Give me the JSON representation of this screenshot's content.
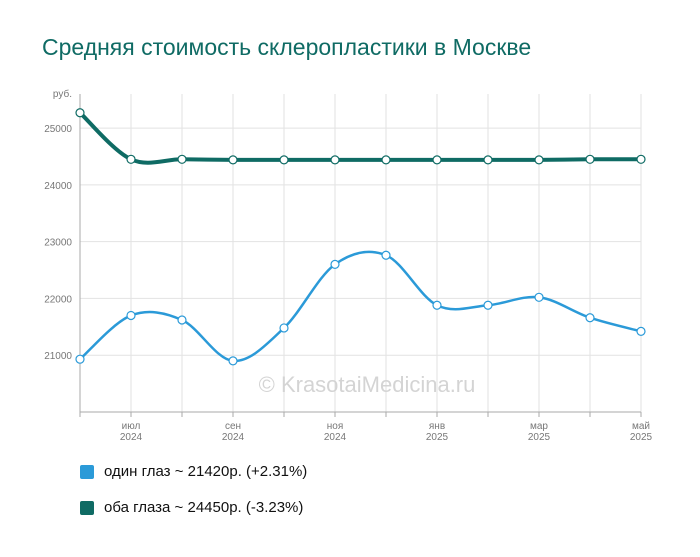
{
  "chart_data": {
    "type": "line",
    "title": "Средняя стоимость склеропластики в Москве",
    "ylabel": "руб.",
    "ylim": [
      20000,
      25600
    ],
    "y_ticks": [
      21000,
      22000,
      23000,
      24000,
      25000
    ],
    "x_months": [
      0,
      1,
      2,
      3,
      4,
      5,
      6,
      7,
      8,
      9,
      10,
      11
    ],
    "x_tick_labels": [
      {
        "month": 1,
        "line1": "июл",
        "line2": "2024"
      },
      {
        "month": 3,
        "line1": "сен",
        "line2": "2024"
      },
      {
        "month": 5,
        "line1": "ноя",
        "line2": "2024"
      },
      {
        "month": 7,
        "line1": "янв",
        "line2": "2025"
      },
      {
        "month": 9,
        "line1": "мар",
        "line2": "2025"
      },
      {
        "month": 11,
        "line1": "май",
        "line2": "2025"
      }
    ],
    "series": [
      {
        "name": "один глаз",
        "color": "#2b9ad8",
        "values": [
          20930,
          21700,
          21620,
          20900,
          21480,
          22600,
          22760,
          21880,
          21880,
          22020,
          21660,
          21420
        ]
      },
      {
        "name": "оба глаза",
        "color": "#0f6b64",
        "values": [
          25270,
          24450,
          24450,
          24440,
          24440,
          24440,
          24440,
          24440,
          24440,
          24440,
          24450,
          24450
        ]
      }
    ],
    "grid": true,
    "legend_position": "bottom-left"
  },
  "legend": [
    {
      "text": "один глаз ~ 21420р. (+2.31%)",
      "color": "#2b9ad8"
    },
    {
      "text": "оба глаза ~ 24450р. (-3.23%)",
      "color": "#0f6b64"
    }
  ],
  "watermark": "© KrasotaiMedicina.ru",
  "colors": {
    "grid": "#e2e2e2",
    "axis": "#aaaaaa",
    "tick_text": "#777777",
    "title": "#0f6b64"
  }
}
